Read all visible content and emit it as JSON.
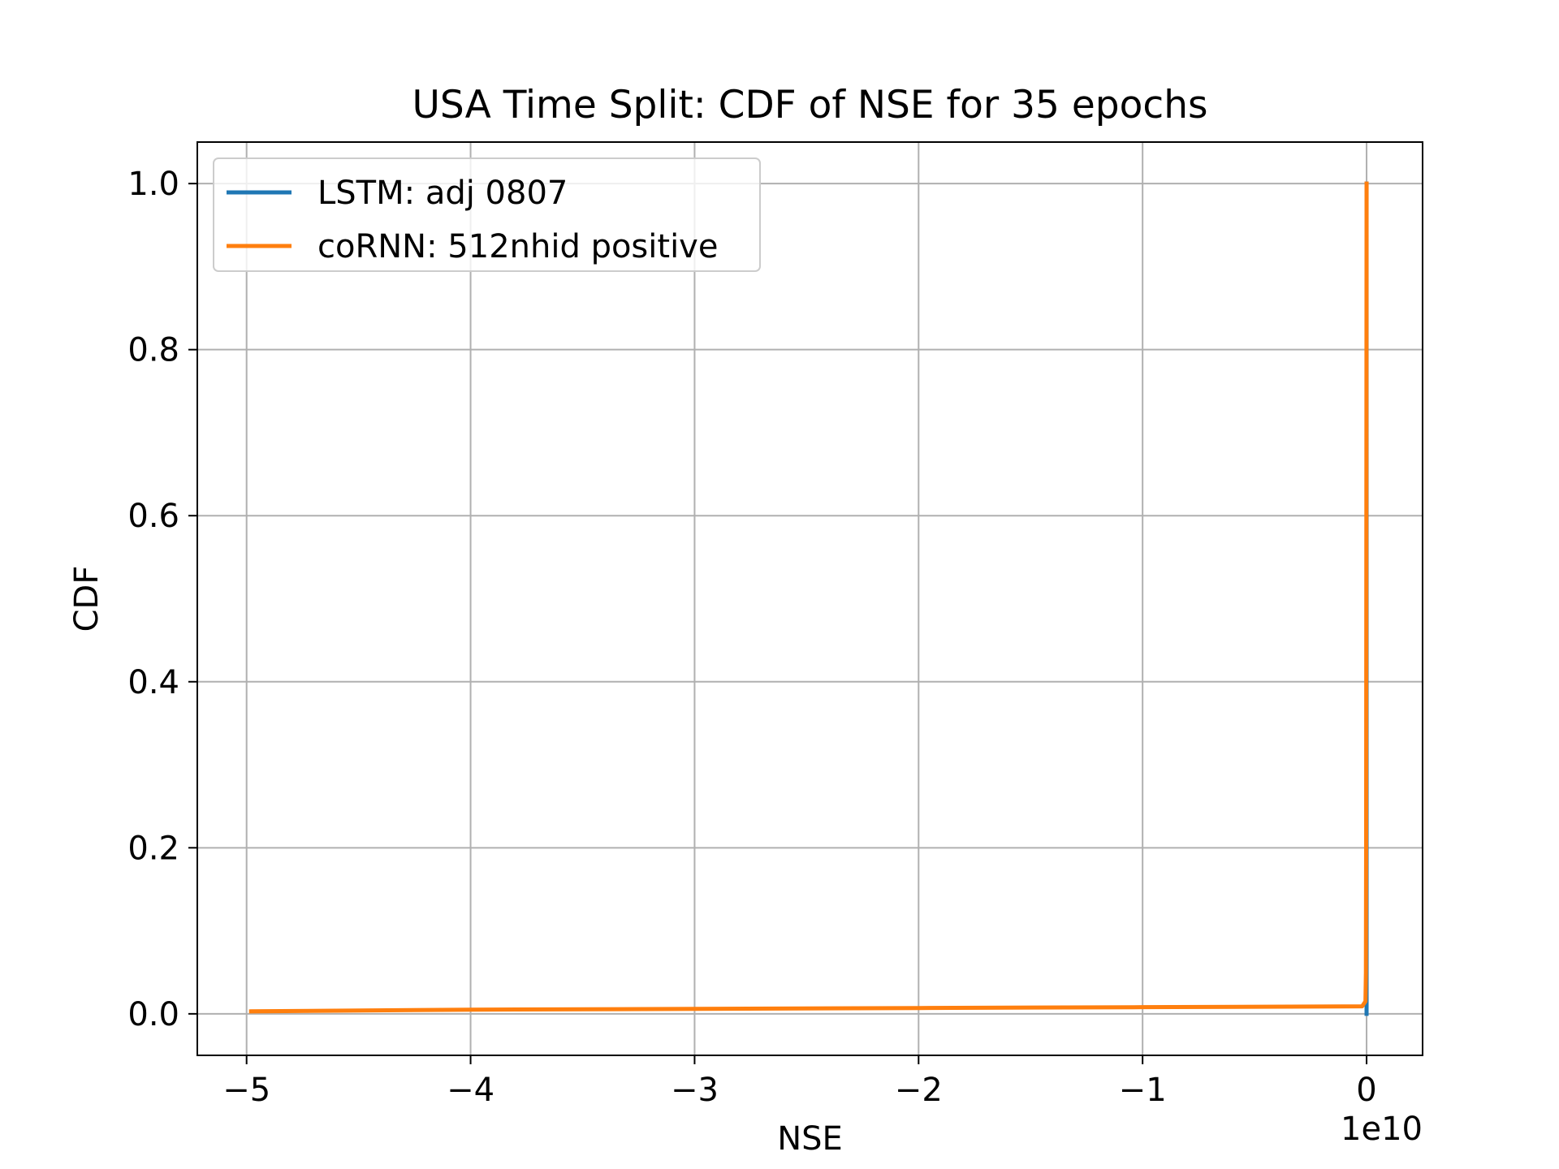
{
  "chart_data": {
    "type": "line",
    "title": "USA Time Split: CDF of NSE for 35 epochs",
    "xlabel": "NSE",
    "ylabel": "CDF",
    "x_offset_label": "1e10",
    "xlim": [
      -5.22,
      0.25
    ],
    "ylim": [
      -0.05,
      1.05
    ],
    "x_ticks": [
      -5,
      -4,
      -3,
      -2,
      -1,
      0
    ],
    "x_tick_labels": [
      "−5",
      "−4",
      "−3",
      "−2",
      "−1",
      "0"
    ],
    "y_ticks": [
      0.0,
      0.2,
      0.4,
      0.6,
      0.8,
      1.0
    ],
    "y_tick_labels": [
      "0.0",
      "0.2",
      "0.4",
      "0.6",
      "0.8",
      "1.0"
    ],
    "grid": true,
    "legend_position": "top-left",
    "series": [
      {
        "name": "LSTM: adj 0807",
        "color": "#1f77b4",
        "points": [
          [
            -0.0001,
            0.0
          ],
          [
            -0.0001,
            0.005
          ],
          [
            0.0,
            0.01
          ],
          [
            0.0,
            1.0
          ]
        ]
      },
      {
        "name": "coRNN: 512nhid positive",
        "color": "#ff7f0e",
        "points": [
          [
            -4.98,
            0.003
          ],
          [
            -4.0,
            0.005
          ],
          [
            -3.0,
            0.006
          ],
          [
            -2.0,
            0.007
          ],
          [
            -1.0,
            0.008
          ],
          [
            -0.02,
            0.009
          ],
          [
            -0.005,
            0.015
          ],
          [
            -0.003,
            0.05
          ],
          [
            -0.002,
            0.2
          ],
          [
            -0.001,
            0.6
          ],
          [
            0.0,
            1.0
          ]
        ]
      }
    ]
  }
}
